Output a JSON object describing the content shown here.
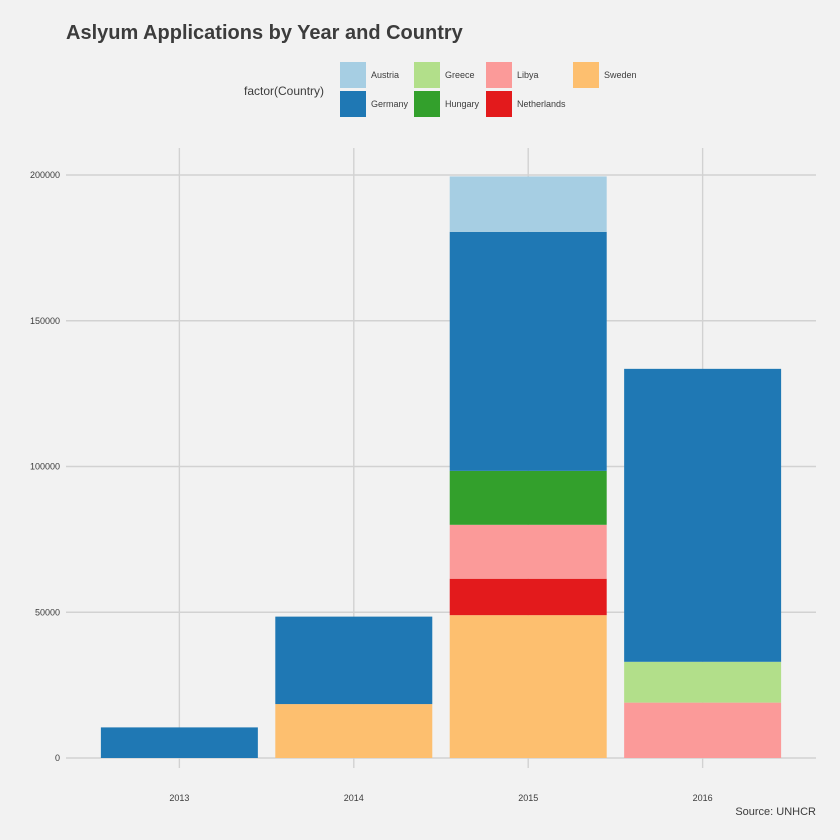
{
  "chart_data": {
    "type": "bar",
    "stacked": true,
    "title": "Aslyum Applications by Year and Country",
    "caption": "Source: UNHCR",
    "legend_title": "factor(Country)",
    "legend_position": "top",
    "xlabel": "",
    "ylabel": "",
    "grid": true,
    "categories": [
      "2013",
      "2014",
      "2015",
      "2016"
    ],
    "ylim": [
      0,
      200000
    ],
    "yticks": [
      0,
      50000,
      100000,
      150000,
      200000
    ],
    "ytick_labels": [
      "0",
      "50000",
      "100000",
      "150000",
      "200000"
    ],
    "legend_order": [
      "Austria",
      "Germany",
      "Greece",
      "Hungary",
      "Libya",
      "Netherlands",
      "Sweden"
    ],
    "stack_order": [
      "Sweden",
      "Netherlands",
      "Libya",
      "Hungary",
      "Greece",
      "Germany",
      "Austria"
    ],
    "series": [
      {
        "name": "Austria",
        "color": "#a6cee3",
        "values": [
          0,
          0,
          19000,
          0
        ]
      },
      {
        "name": "Germany",
        "color": "#1f78b4",
        "values": [
          10500,
          30000,
          82000,
          100500
        ]
      },
      {
        "name": "Greece",
        "color": "#b2df8a",
        "values": [
          0,
          0,
          0,
          14000
        ]
      },
      {
        "name": "Hungary",
        "color": "#33a02c",
        "values": [
          0,
          0,
          18500,
          0
        ]
      },
      {
        "name": "Libya",
        "color": "#fb9a99",
        "values": [
          0,
          0,
          18500,
          19000
        ]
      },
      {
        "name": "Netherlands",
        "color": "#e31a1c",
        "values": [
          0,
          0,
          12500,
          0
        ]
      },
      {
        "name": "Sweden",
        "color": "#fdbf6f",
        "values": [
          0,
          18500,
          49000,
          0
        ]
      }
    ]
  }
}
